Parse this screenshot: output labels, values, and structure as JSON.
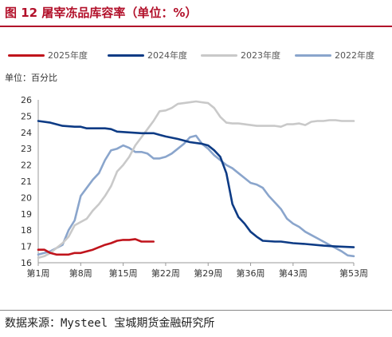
{
  "header": {
    "title": "图 12 屠宰冻品库容率（单位：%）"
  },
  "unit_label": "单位：百分比",
  "source": {
    "prefix": "数据来源：",
    "name": "Mysteel 宝城期货金融研究所"
  },
  "colors": {
    "title": "#b2102a",
    "2025": "#c0141c",
    "2024": "#0d3b85",
    "2023": "#c9c9c9",
    "2022": "#8aa5cc"
  },
  "chart_data": {
    "type": "line",
    "title": "屠宰冻品库容率（单位：%）",
    "xlabel": "",
    "ylabel": "单位：百分比",
    "x_ticks": [
      {
        "label": "第1周",
        "week": 1
      },
      {
        "label": "第8周",
        "week": 8
      },
      {
        "label": "第15周",
        "week": 15
      },
      {
        "label": "第22周",
        "week": 22
      },
      {
        "label": "第29周",
        "week": 29
      },
      {
        "label": "第36周",
        "week": 36
      },
      {
        "label": "第43周",
        "week": 43
      },
      {
        "label": "第53周",
        "week": 53
      }
    ],
    "xlim": [
      1,
      53
    ],
    "ylim": [
      16,
      26
    ],
    "y_ticks": [
      16,
      17,
      18,
      19,
      20,
      21,
      22,
      23,
      24,
      25,
      26
    ],
    "grid": false,
    "legend_position": "top",
    "series": [
      {
        "name": "2025年度",
        "color": "#c0141c",
        "points": [
          [
            1,
            16.8
          ],
          [
            2,
            16.8
          ],
          [
            3,
            16.6
          ],
          [
            4,
            16.5
          ],
          [
            5,
            16.5
          ],
          [
            6,
            16.5
          ],
          [
            7,
            16.6
          ],
          [
            8,
            16.6
          ],
          [
            9,
            16.7
          ],
          [
            10,
            16.8
          ],
          [
            11,
            16.95
          ],
          [
            12,
            17.1
          ],
          [
            13,
            17.2
          ],
          [
            14,
            17.35
          ],
          [
            15,
            17.4
          ],
          [
            16,
            17.4
          ],
          [
            17,
            17.45
          ],
          [
            18,
            17.3
          ],
          [
            19,
            17.3
          ],
          [
            20,
            17.3
          ]
        ]
      },
      {
        "name": "2024年度",
        "color": "#0d3b85",
        "points": [
          [
            1,
            24.7
          ],
          [
            3,
            24.6
          ],
          [
            5,
            24.4
          ],
          [
            7,
            24.35
          ],
          [
            8,
            24.35
          ],
          [
            9,
            24.25
          ],
          [
            12,
            24.25
          ],
          [
            13,
            24.2
          ],
          [
            14,
            24.05
          ],
          [
            16,
            24.0
          ],
          [
            18,
            23.95
          ],
          [
            20,
            23.95
          ],
          [
            21,
            23.85
          ],
          [
            22,
            23.75
          ],
          [
            24,
            23.6
          ],
          [
            26,
            23.4
          ],
          [
            28,
            23.3
          ],
          [
            29,
            23.2
          ],
          [
            30,
            22.9
          ],
          [
            31,
            22.5
          ],
          [
            32,
            21.5
          ],
          [
            33,
            19.6
          ],
          [
            34,
            18.8
          ],
          [
            35,
            18.4
          ],
          [
            36,
            17.9
          ],
          [
            37,
            17.6
          ],
          [
            38,
            17.35
          ],
          [
            40,
            17.3
          ],
          [
            41,
            17.3
          ],
          [
            43,
            17.2
          ],
          [
            45,
            17.15
          ],
          [
            48,
            17.05
          ],
          [
            50,
            17.0
          ],
          [
            53,
            16.95
          ]
        ]
      },
      {
        "name": "2023年度",
        "color": "#c9c9c9",
        "points": [
          [
            1,
            16.3
          ],
          [
            2,
            16.4
          ],
          [
            3,
            16.6
          ],
          [
            4,
            16.9
          ],
          [
            5,
            17.2
          ],
          [
            6,
            17.6
          ],
          [
            7,
            18.3
          ],
          [
            8,
            18.5
          ],
          [
            9,
            18.7
          ],
          [
            10,
            19.2
          ],
          [
            11,
            19.6
          ],
          [
            12,
            20.1
          ],
          [
            13,
            20.7
          ],
          [
            14,
            21.6
          ],
          [
            15,
            22.0
          ],
          [
            16,
            22.5
          ],
          [
            17,
            23.2
          ],
          [
            18,
            23.7
          ],
          [
            19,
            24.2
          ],
          [
            20,
            24.7
          ],
          [
            21,
            25.3
          ],
          [
            22,
            25.35
          ],
          [
            23,
            25.5
          ],
          [
            24,
            25.75
          ],
          [
            25,
            25.8
          ],
          [
            26,
            25.85
          ],
          [
            27,
            25.9
          ],
          [
            28,
            25.85
          ],
          [
            29,
            25.8
          ],
          [
            30,
            25.5
          ],
          [
            31,
            24.95
          ],
          [
            32,
            24.6
          ],
          [
            33,
            24.55
          ],
          [
            34,
            24.55
          ],
          [
            35,
            24.5
          ],
          [
            36,
            24.45
          ],
          [
            37,
            24.4
          ],
          [
            38,
            24.4
          ],
          [
            39,
            24.4
          ],
          [
            40,
            24.4
          ],
          [
            41,
            24.35
          ],
          [
            42,
            24.5
          ],
          [
            43,
            24.5
          ],
          [
            44,
            24.55
          ],
          [
            45,
            24.45
          ],
          [
            46,
            24.65
          ],
          [
            47,
            24.7
          ],
          [
            48,
            24.7
          ],
          [
            49,
            24.75
          ],
          [
            50,
            24.75
          ],
          [
            51,
            24.7
          ],
          [
            52,
            24.7
          ],
          [
            53,
            24.7
          ]
        ]
      },
      {
        "name": "2022年度",
        "color": "#8aa5cc",
        "points": [
          [
            1,
            16.5
          ],
          [
            2,
            16.6
          ],
          [
            3,
            16.7
          ],
          [
            4,
            16.9
          ],
          [
            5,
            17.1
          ],
          [
            6,
            18.0
          ],
          [
            7,
            18.6
          ],
          [
            8,
            20.1
          ],
          [
            9,
            20.6
          ],
          [
            10,
            21.1
          ],
          [
            11,
            21.5
          ],
          [
            12,
            22.3
          ],
          [
            13,
            22.9
          ],
          [
            14,
            23.0
          ],
          [
            15,
            23.2
          ],
          [
            16,
            23.05
          ],
          [
            17,
            22.8
          ],
          [
            18,
            22.8
          ],
          [
            19,
            22.7
          ],
          [
            20,
            22.4
          ],
          [
            21,
            22.4
          ],
          [
            22,
            22.5
          ],
          [
            23,
            22.7
          ],
          [
            24,
            23.0
          ],
          [
            25,
            23.3
          ],
          [
            26,
            23.7
          ],
          [
            27,
            23.8
          ],
          [
            28,
            23.3
          ],
          [
            29,
            23.0
          ],
          [
            30,
            22.6
          ],
          [
            31,
            22.3
          ],
          [
            32,
            22.0
          ],
          [
            33,
            21.8
          ],
          [
            34,
            21.5
          ],
          [
            35,
            21.2
          ],
          [
            36,
            20.9
          ],
          [
            37,
            20.8
          ],
          [
            38,
            20.6
          ],
          [
            39,
            20.1
          ],
          [
            40,
            19.7
          ],
          [
            41,
            19.3
          ],
          [
            42,
            18.7
          ],
          [
            43,
            18.4
          ],
          [
            44,
            18.2
          ],
          [
            45,
            17.9
          ],
          [
            46,
            17.7
          ],
          [
            47,
            17.5
          ],
          [
            48,
            17.3
          ],
          [
            49,
            17.1
          ],
          [
            50,
            16.9
          ],
          [
            51,
            16.7
          ],
          [
            52,
            16.45
          ],
          [
            53,
            16.4
          ]
        ]
      }
    ]
  }
}
